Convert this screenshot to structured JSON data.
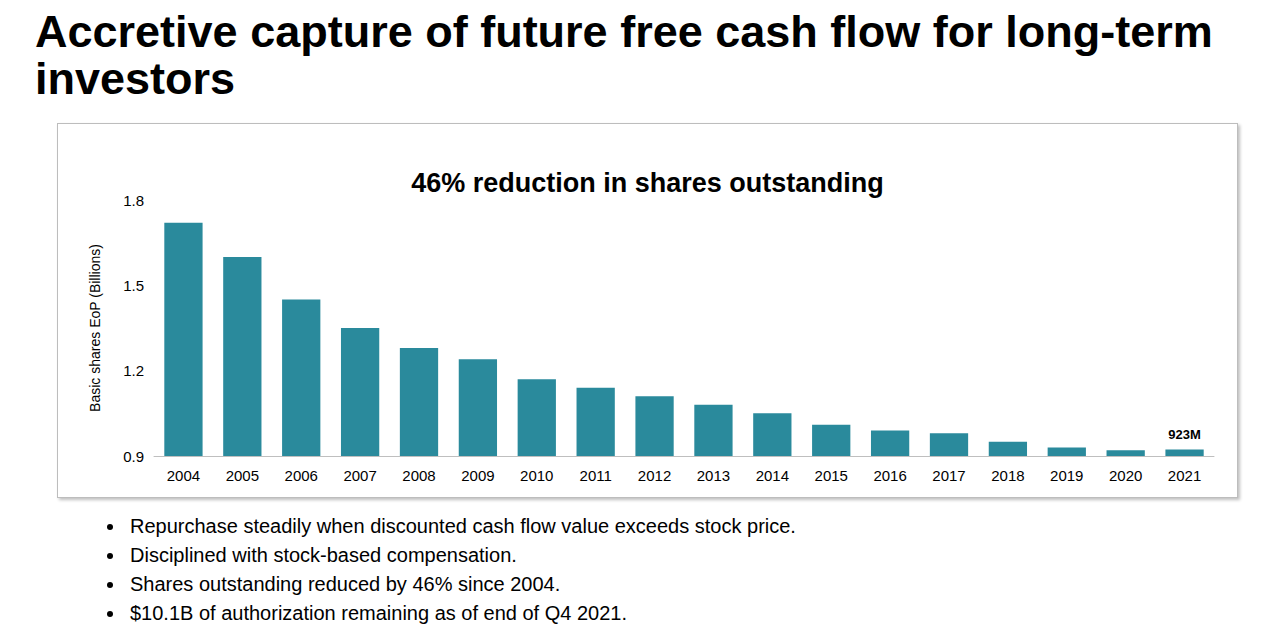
{
  "slide_title": "Accretive capture of future free cash flow for long-term investors",
  "bullets": [
    "Repurchase steadily when discounted cash flow value exceeds stock price.",
    "Disciplined with stock-based compensation.",
    "Shares outstanding reduced by 46% since 2004.",
    "$10.1B of authorization remaining as of end of Q4 2021."
  ],
  "chart_data": {
    "type": "bar",
    "title": "46% reduction in shares outstanding",
    "y_label": "Basic shares EoP (Billions)",
    "categories": [
      "2004",
      "2005",
      "2006",
      "2007",
      "2008",
      "2009",
      "2010",
      "2011",
      "2012",
      "2013",
      "2014",
      "2015",
      "2016",
      "2017",
      "2018",
      "2019",
      "2020",
      "2021"
    ],
    "values": [
      1.72,
      1.6,
      1.45,
      1.35,
      1.28,
      1.24,
      1.17,
      1.14,
      1.11,
      1.08,
      1.05,
      1.01,
      0.99,
      0.98,
      0.95,
      0.93,
      0.92,
      0.923
    ],
    "value_labels": [
      null,
      null,
      null,
      null,
      null,
      null,
      null,
      null,
      null,
      null,
      null,
      null,
      null,
      null,
      null,
      null,
      null,
      "923M"
    ],
    "data_labels": true,
    "color": "#2a8a9c",
    "ylim": [
      0.9,
      1.8
    ],
    "yticks": [
      0.9,
      1.2,
      1.5,
      1.8
    ],
    "grid": false
  }
}
